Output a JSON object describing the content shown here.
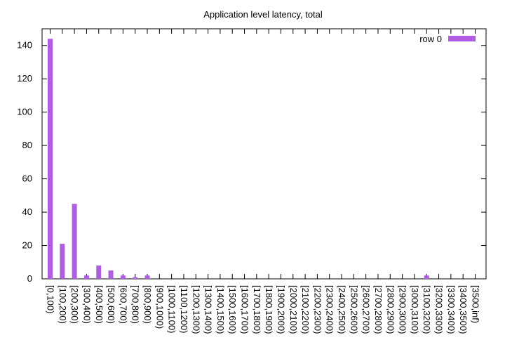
{
  "chart_data": {
    "type": "bar",
    "title": "Application level latency, total",
    "xlabel": "",
    "ylabel": "",
    "ylim": [
      0,
      150
    ],
    "yticks": [
      0,
      20,
      40,
      60,
      80,
      100,
      120,
      140
    ],
    "grid": false,
    "legend_position": "top-right",
    "bar_color": "#b05ce6",
    "categories": [
      "[0,100)",
      "[100,200)",
      "[200,300)",
      "[300,400)",
      "[400,500)",
      "[500,600)",
      "[600,700)",
      "[700,800)",
      "[800,900)",
      "[900,1000)",
      "[1000,1100)",
      "[1100,1200)",
      "[1200,1300)",
      "[1300,1400)",
      "[1400,1500)",
      "[1500,1600)",
      "[1600,1700)",
      "[1700,1800)",
      "[1800,1900)",
      "[1900,2000)",
      "[2000,2100)",
      "[2100,2200)",
      "[2200,2300)",
      "[2300,2400)",
      "[2400,2500)",
      "[2500,2600)",
      "[2600,2700)",
      "[2700,2800)",
      "[2800,2900)",
      "[2900,3000)",
      "[3000,3100)",
      "[3100,3200)",
      "[3200,3300)",
      "[3300,3400)",
      "[3400,3500)",
      "[3500,inf)"
    ],
    "series": [
      {
        "name": "row 0",
        "values": [
          144,
          21,
          45,
          2,
          8,
          5,
          2,
          1,
          2,
          0,
          0,
          0,
          0,
          0,
          0,
          0,
          0,
          0,
          0,
          0,
          0,
          0,
          0,
          0,
          0,
          0,
          0,
          0,
          0,
          0,
          0,
          2,
          0,
          0,
          0,
          0
        ]
      }
    ]
  }
}
